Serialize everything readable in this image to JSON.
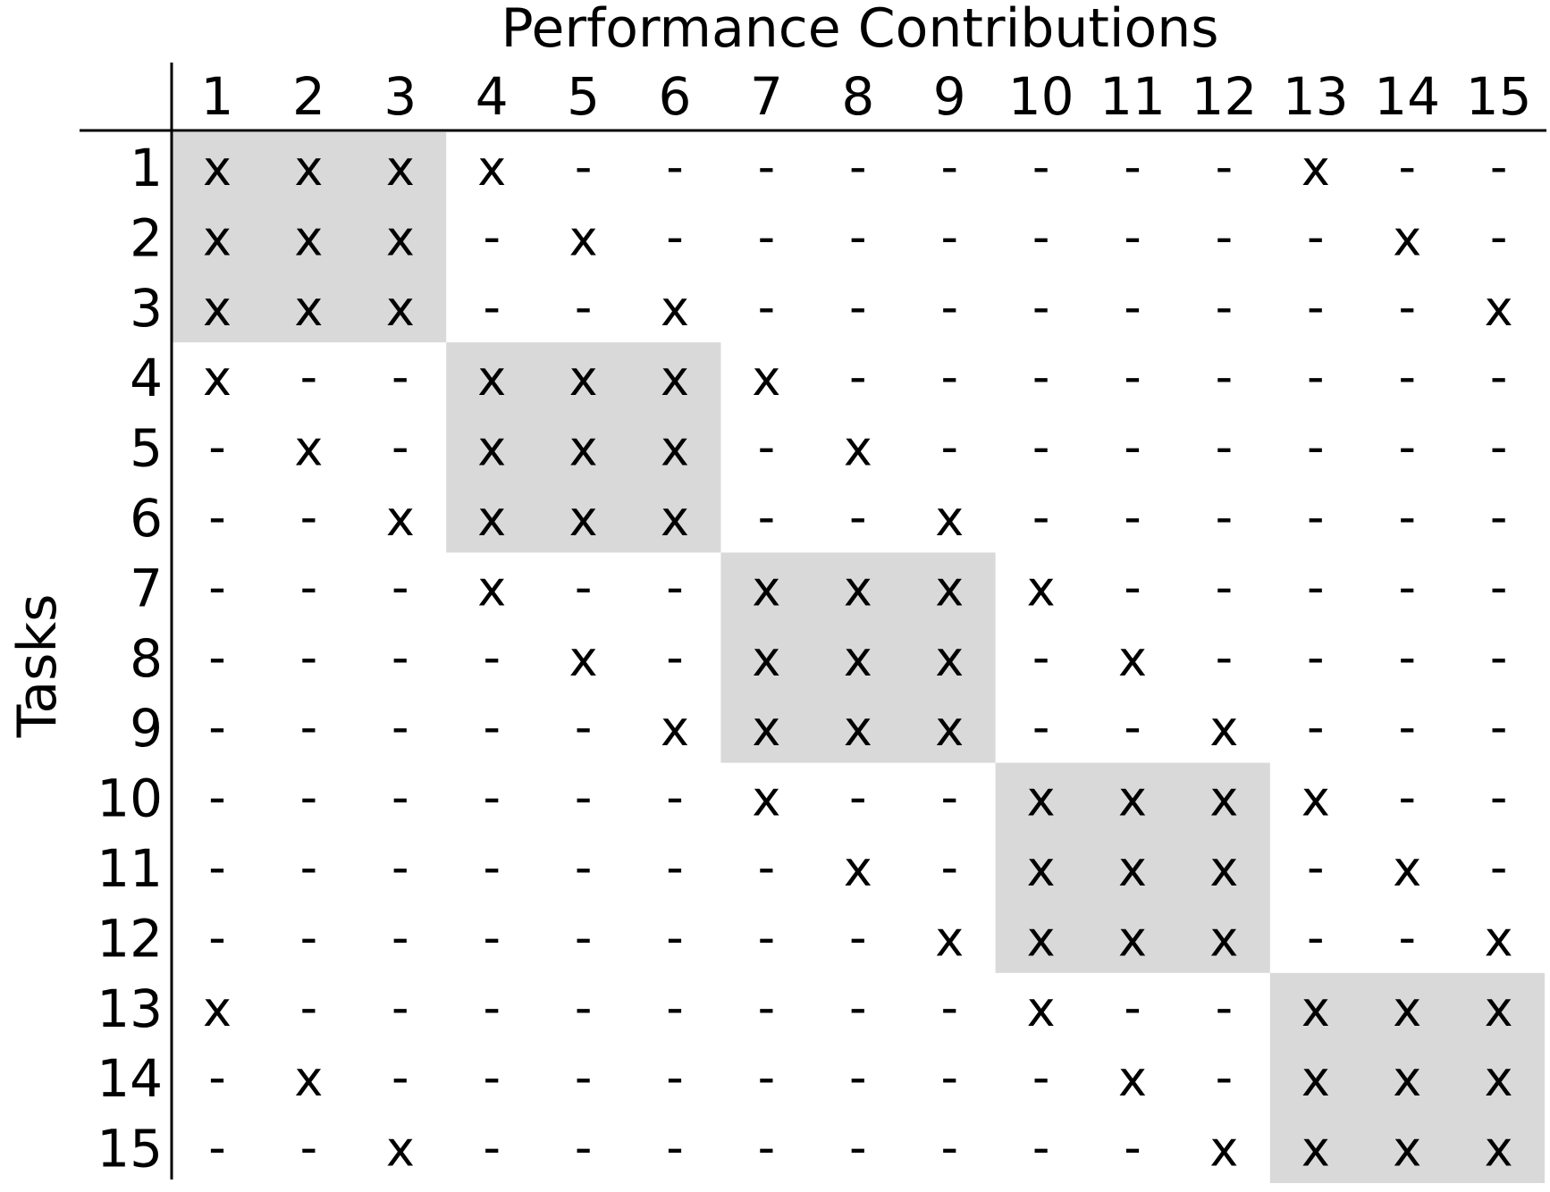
{
  "x_axis_title": "Performance Contributions",
  "y_axis_title": "Tasks",
  "column_labels": [
    "1",
    "2",
    "3",
    "4",
    "5",
    "6",
    "7",
    "8",
    "9",
    "10",
    "11",
    "12",
    "13",
    "14",
    "15"
  ],
  "row_labels": [
    "1",
    "2",
    "3",
    "4",
    "5",
    "6",
    "7",
    "8",
    "9",
    "10",
    "11",
    "12",
    "13",
    "14",
    "15"
  ],
  "marks": {
    "contributes": "x",
    "none": "-"
  },
  "block_size": 3,
  "colors": {
    "block_shading": "#d9d9d9",
    "ink": "#000000"
  },
  "matrix": [
    "xxxx--------x--",
    "xxx-x--------x-",
    "xxx--x--------x",
    "x--xxxx--------",
    "-x-xxx-x-------",
    "--xxxx--x------",
    "---x--xxxx-----",
    "----x-xxx-x----",
    "-----xxxx--x---",
    "------x--xxxx--",
    "-------x-xxx-x-",
    "--------xxxx--x",
    "x--------x--xxx",
    "-x--------x-xxx",
    "--x--------xxxx"
  ]
}
